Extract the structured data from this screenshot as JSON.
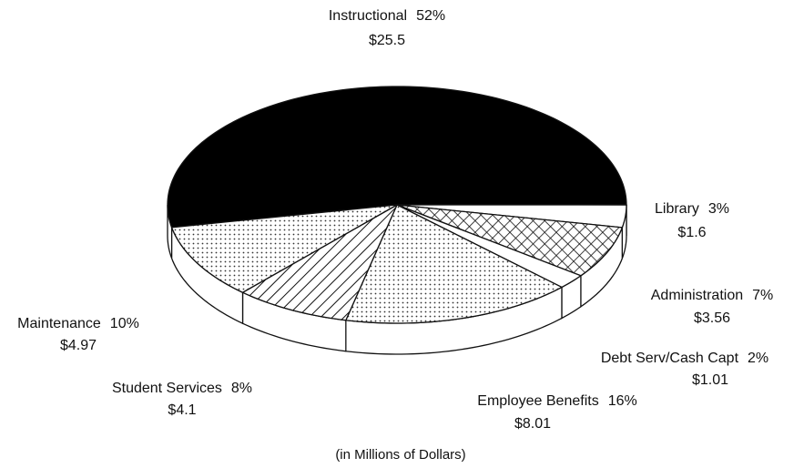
{
  "chart_data": {
    "type": "pie3d",
    "categories": [
      "Instructional",
      "Library",
      "Administration",
      "Debt Serv/Cash Capt",
      "Employee Benefits",
      "Student Services",
      "Maintenance"
    ],
    "values": [
      52,
      3,
      7,
      2,
      16,
      8,
      10
    ],
    "value_labels": [
      "52%",
      "3%",
      "7%",
      "2%",
      "16%",
      "8%",
      "10%"
    ],
    "amounts": [
      25.5,
      1.6,
      3.56,
      1.01,
      8.01,
      4.1,
      4.97
    ],
    "amount_labels": [
      "$25.5",
      "$1.6",
      "$3.56",
      "$1.01",
      "$8.01",
      "$4.1",
      "$4.97"
    ],
    "patterns": [
      "solid",
      "none",
      "crosshatch",
      "none",
      "dots",
      "hatch",
      "dots"
    ],
    "note": "(in Millions of Dollars)"
  }
}
